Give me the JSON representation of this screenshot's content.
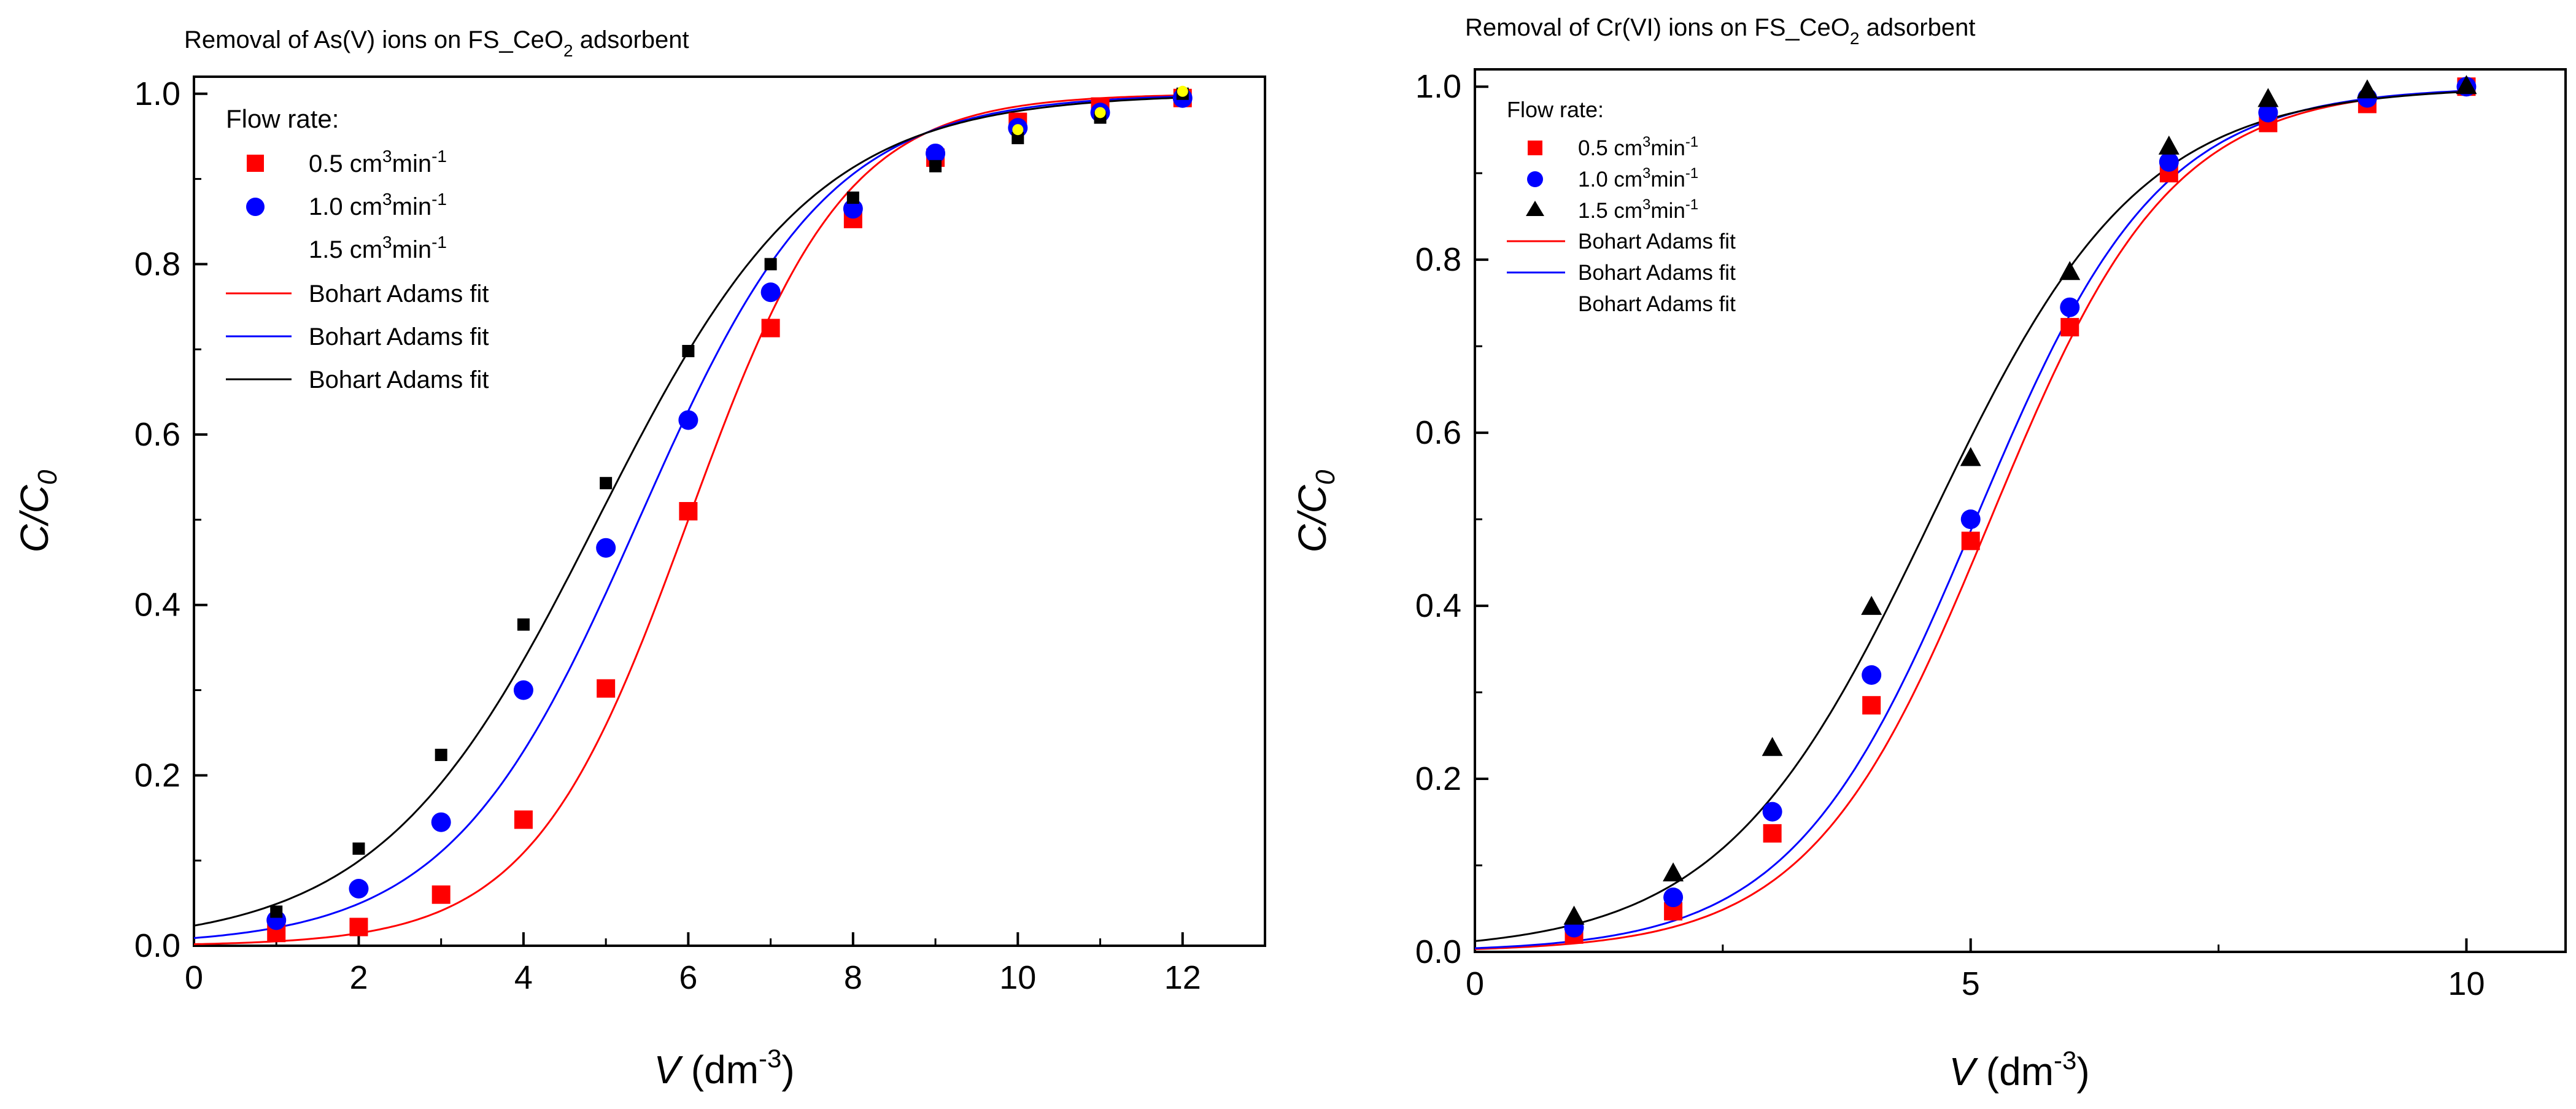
{
  "chart_data": [
    {
      "type": "scatter",
      "title_prefix": "Removal of As(V) ions on FS_CeO",
      "title_sub": "2",
      "title_suffix": " adsorbent",
      "xlabel_var": "V",
      "xlabel_unit": " (dm",
      "xlabel_sup": "-3",
      "xlabel_close": ")",
      "ylabel_main": "C/C",
      "ylabel_sub": "0",
      "xlim": [
        0,
        13
      ],
      "ylim": [
        0,
        1.02
      ],
      "x_ticks": [
        "0",
        "2",
        "4",
        "6",
        "8",
        "10",
        "12"
      ],
      "y_ticks": [
        "0.0",
        "0.2",
        "0.4",
        "0.6",
        "0.8",
        "1.0"
      ],
      "legend_title": "Flow rate:",
      "series": [
        {
          "name": "0.5 cm",
          "sup": "3",
          "mid": "min",
          "sup2": "-1",
          "color": "#ff0000",
          "marker": "square",
          "x": [
            1,
            2,
            3,
            4,
            5,
            6,
            7,
            8,
            9,
            10,
            11,
            12
          ],
          "y": [
            0.015,
            0.022,
            0.06,
            0.148,
            0.302,
            0.51,
            0.725,
            0.853,
            0.925,
            0.967,
            0.985,
            0.995
          ]
        },
        {
          "name": "1.0 cm",
          "sup": "3",
          "mid": "min",
          "sup2": "-1",
          "color": "#0000ff",
          "marker": "circle",
          "x": [
            1,
            2,
            3,
            4,
            5,
            6,
            7,
            8,
            9,
            10,
            11,
            12
          ],
          "y": [
            0.03,
            0.067,
            0.145,
            0.3,
            0.467,
            0.617,
            0.767,
            0.865,
            0.93,
            0.96,
            0.978,
            0.995
          ]
        },
        {
          "name": "1.5 cm",
          "sup": "3",
          "mid": "min",
          "sup2": "-1",
          "color": "#000000",
          "marker": "square-small",
          "x": [
            1,
            2,
            3,
            4,
            5,
            6,
            7,
            8,
            9,
            10,
            11,
            12
          ],
          "y": [
            0.04,
            0.114,
            0.224,
            0.377,
            0.543,
            0.698,
            0.8,
            0.878,
            0.915,
            0.948,
            0.972,
            1.0
          ]
        }
      ],
      "extra_points": {
        "color": "#ffff00",
        "x": [
          10,
          11,
          12
        ],
        "y": [
          0.955,
          0.975,
          1.0
        ]
      },
      "fits": [
        {
          "name": "Bohart Adams fit",
          "color": "#ff0000",
          "k": 1.05,
          "v0": 6.0
        },
        {
          "name": "Bohart Adams fit",
          "color": "#0000ff",
          "k": 0.87,
          "v0": 5.4
        },
        {
          "name": "Bohart Adams fit",
          "color": "#000000",
          "k": 0.76,
          "v0": 4.9
        }
      ]
    },
    {
      "type": "scatter",
      "title_prefix": "Removal of Cr(VI) ions on FS_CeO",
      "title_sub": "2",
      "title_suffix": " adsorbent",
      "xlabel_var": "V",
      "xlabel_unit": " (dm",
      "xlabel_sup": "-3",
      "xlabel_close": ")",
      "ylabel_main": "C/C",
      "ylabel_sub": "0",
      "xlim": [
        0,
        11
      ],
      "ylim": [
        0,
        1.02
      ],
      "x_ticks": [
        "0",
        "5",
        "10"
      ],
      "y_ticks": [
        "0.0",
        "0.2",
        "0.4",
        "0.6",
        "0.8",
        "1.0"
      ],
      "legend_title": "Flow rate:",
      "series": [
        {
          "name": "0.5 cm",
          "sup": "3",
          "mid": "min",
          "sup2": "-1",
          "color": "#ff0000",
          "marker": "square",
          "x": [
            1,
            2,
            3,
            4,
            5,
            6,
            7,
            8,
            9,
            10
          ],
          "y": [
            0.02,
            0.047,
            0.137,
            0.285,
            0.475,
            0.722,
            0.9,
            0.958,
            0.98,
            1.0
          ]
        },
        {
          "name": "1.0 cm",
          "sup": "3",
          "mid": "min",
          "sup2": "-1",
          "color": "#0000ff",
          "marker": "circle",
          "x": [
            1,
            2,
            3,
            4,
            5,
            6,
            7,
            8,
            9,
            10
          ],
          "y": [
            0.028,
            0.063,
            0.162,
            0.32,
            0.5,
            0.745,
            0.913,
            0.97,
            0.987,
            1.0
          ]
        },
        {
          "name": "1.5 cm",
          "sup": "3",
          "mid": "min",
          "sup2": "-1",
          "color": "#000000",
          "marker": "triangle",
          "x": [
            1,
            2,
            3,
            4,
            5,
            6,
            7,
            8,
            9,
            10
          ],
          "y": [
            0.04,
            0.09,
            0.235,
            0.398,
            0.57,
            0.785,
            0.93,
            0.985,
            0.995,
            1.0
          ]
        }
      ],
      "fits": [
        {
          "name": "Bohart Adams fit",
          "color": "#ff0000",
          "k": 1.1,
          "v0": 5.2
        },
        {
          "name": "Bohart Adams fit",
          "color": "#0000ff",
          "k": 1.08,
          "v0": 5.05
        },
        {
          "name": "Bohart Adams fit",
          "color": "#000000",
          "k": 0.95,
          "v0": 4.6
        }
      ]
    }
  ]
}
